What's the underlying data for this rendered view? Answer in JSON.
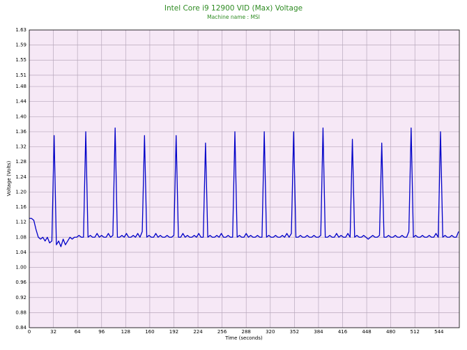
{
  "chart_data": {
    "type": "line",
    "title": "Intel Core i9 12900 VID (Max) Voltage",
    "subtitle": "Machine name : MSI",
    "x_label": "Time (seconds)",
    "y_label": "Voltage (Volts)",
    "color": "#0000c8",
    "grid": true,
    "xlim": [
      0,
      571
    ],
    "ylim": [
      0.84,
      1.63
    ],
    "xticks": [
      0,
      32,
      64,
      96,
      128,
      160,
      192,
      224,
      256,
      288,
      320,
      352,
      384,
      416,
      448,
      480,
      512,
      544
    ],
    "yticks": [
      0.84,
      0.88,
      0.92,
      0.96,
      {
        "value": 1,
        "label": "1.00"
      },
      1.04,
      1.08,
      1.12,
      1.16,
      {
        "value": 1.2,
        "label": "1.20"
      },
      1.24,
      1.28,
      1.32,
      1.36,
      {
        "value": 1.4,
        "label": "1.40"
      },
      1.44,
      1.48,
      1.51,
      1.55,
      1.59,
      1.63
    ],
    "x": [
      0,
      3,
      6,
      9,
      12,
      15,
      18,
      21,
      24,
      27,
      30,
      33,
      36,
      39,
      42,
      45,
      48,
      51,
      54,
      57,
      60,
      63,
      66,
      69,
      72,
      75,
      78,
      81,
      84,
      87,
      90,
      93,
      96,
      99,
      102,
      105,
      108,
      111,
      114,
      117,
      120,
      123,
      126,
      129,
      132,
      135,
      138,
      141,
      144,
      147,
      150,
      153,
      156,
      159,
      162,
      165,
      168,
      171,
      174,
      177,
      180,
      183,
      186,
      189,
      192,
      195,
      198,
      201,
      204,
      207,
      210,
      213,
      216,
      219,
      222,
      225,
      228,
      231,
      234,
      237,
      240,
      243,
      246,
      249,
      252,
      255,
      258,
      261,
      264,
      267,
      270,
      273,
      276,
      279,
      282,
      285,
      288,
      291,
      294,
      297,
      300,
      303,
      306,
      309,
      312,
      315,
      318,
      321,
      324,
      327,
      330,
      333,
      336,
      339,
      342,
      345,
      348,
      351,
      354,
      357,
      360,
      363,
      366,
      369,
      372,
      375,
      378,
      381,
      384,
      387,
      390,
      393,
      396,
      399,
      402,
      405,
      408,
      411,
      414,
      417,
      420,
      423,
      426,
      429,
      432,
      435,
      438,
      441,
      444,
      447,
      450,
      453,
      456,
      459,
      462,
      465,
      468,
      471,
      474,
      477,
      480,
      483,
      486,
      489,
      492,
      495,
      498,
      501,
      504,
      507,
      510,
      513,
      516,
      519,
      522,
      525,
      528,
      531,
      534,
      537,
      540,
      543,
      546,
      549,
      552,
      555,
      558,
      561,
      564,
      567,
      570
    ],
    "values": [
      1.13,
      1.13,
      1.125,
      1.1,
      1.08,
      1.075,
      1.08,
      1.07,
      1.08,
      1.065,
      1.07,
      1.35,
      1.06,
      1.07,
      1.055,
      1.075,
      1.06,
      1.07,
      1.08,
      1.075,
      1.08,
      1.08,
      1.085,
      1.08,
      1.08,
      1.36,
      1.08,
      1.085,
      1.08,
      1.08,
      1.09,
      1.08,
      1.085,
      1.08,
      1.08,
      1.09,
      1.08,
      1.085,
      1.37,
      1.08,
      1.08,
      1.085,
      1.08,
      1.09,
      1.08,
      1.08,
      1.085,
      1.08,
      1.09,
      1.08,
      1.095,
      1.35,
      1.08,
      1.085,
      1.08,
      1.08,
      1.09,
      1.08,
      1.085,
      1.08,
      1.08,
      1.085,
      1.08,
      1.08,
      1.085,
      1.35,
      1.08,
      1.08,
      1.09,
      1.08,
      1.085,
      1.08,
      1.08,
      1.085,
      1.08,
      1.09,
      1.08,
      1.08,
      1.33,
      1.08,
      1.085,
      1.08,
      1.08,
      1.085,
      1.08,
      1.09,
      1.08,
      1.08,
      1.085,
      1.08,
      1.08,
      1.36,
      1.08,
      1.085,
      1.08,
      1.08,
      1.09,
      1.08,
      1.085,
      1.08,
      1.08,
      1.085,
      1.08,
      1.08,
      1.36,
      1.08,
      1.085,
      1.08,
      1.08,
      1.085,
      1.08,
      1.08,
      1.085,
      1.08,
      1.09,
      1.08,
      1.09,
      1.36,
      1.08,
      1.08,
      1.085,
      1.08,
      1.08,
      1.085,
      1.08,
      1.08,
      1.085,
      1.08,
      1.08,
      1.085,
      1.37,
      1.08,
      1.08,
      1.085,
      1.08,
      1.08,
      1.09,
      1.08,
      1.085,
      1.08,
      1.08,
      1.09,
      1.08,
      1.34,
      1.08,
      1.085,
      1.08,
      1.08,
      1.085,
      1.08,
      1.075,
      1.08,
      1.085,
      1.08,
      1.08,
      1.085,
      1.33,
      1.08,
      1.08,
      1.085,
      1.08,
      1.08,
      1.085,
      1.08,
      1.08,
      1.085,
      1.08,
      1.08,
      1.095,
      1.37,
      1.08,
      1.085,
      1.08,
      1.08,
      1.085,
      1.08,
      1.08,
      1.085,
      1.08,
      1.08,
      1.09,
      1.08,
      1.36,
      1.08,
      1.085,
      1.08,
      1.08,
      1.085,
      1.08,
      1.08,
      1.095
    ]
  }
}
